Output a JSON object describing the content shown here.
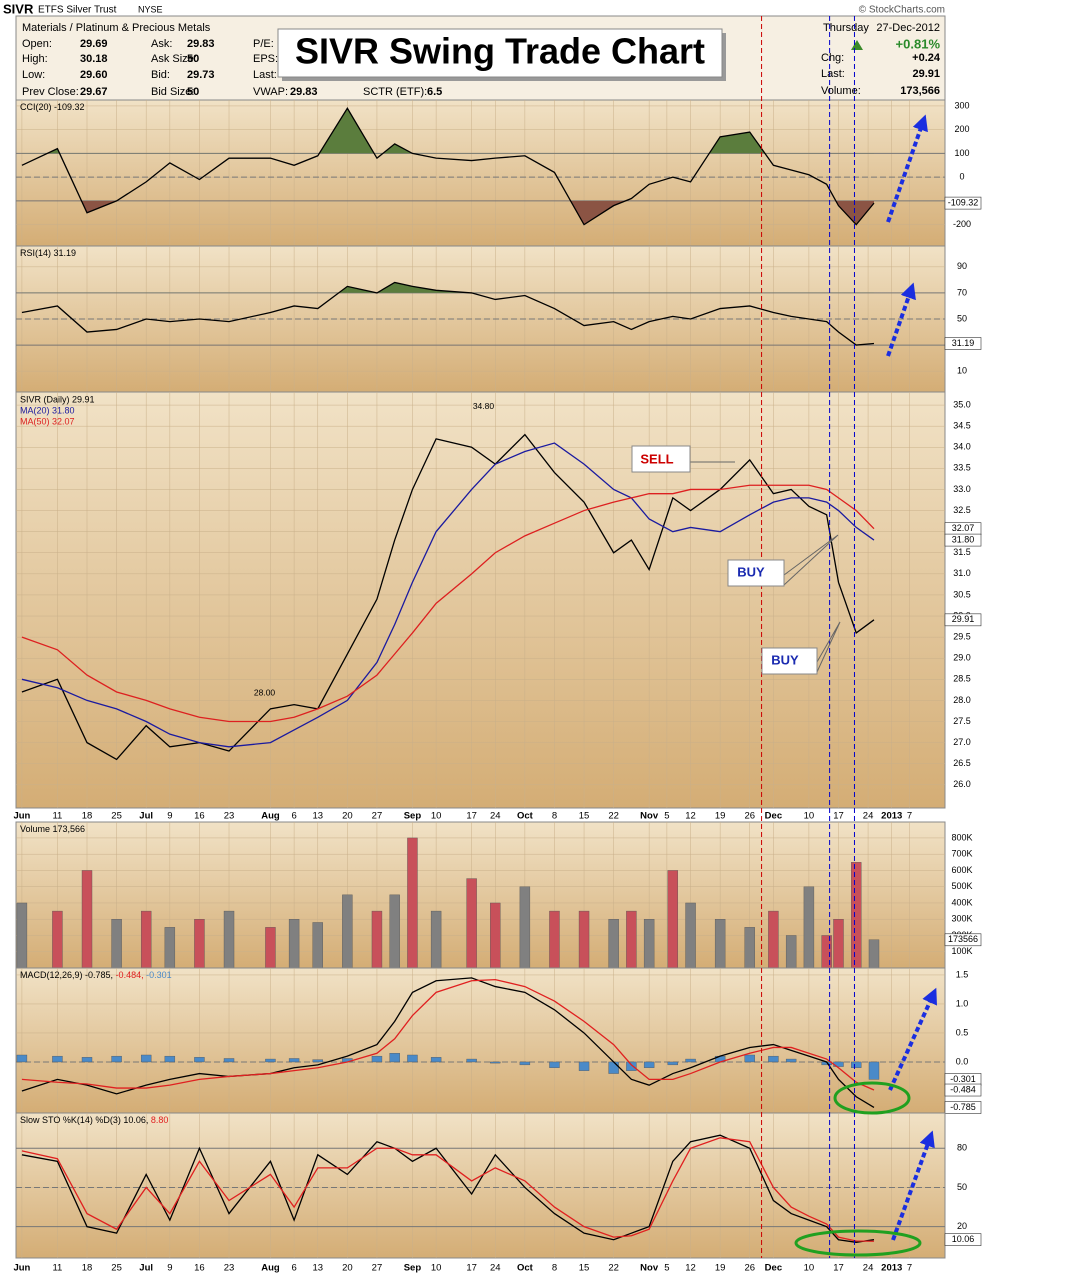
{
  "header": {
    "symbol": "SIVR",
    "name": "ETFS Silver Trust",
    "exchange": "NYSE",
    "source": "© StockCharts.com",
    "sector": "Materials / Platinum & Precious Metals",
    "day": "Thursday",
    "date": "27-Dec-2012",
    "title": "SIVR Swing Trade Chart",
    "quote_cols": [
      [
        [
          "Open:",
          "29.69"
        ],
        [
          "High:",
          "30.18"
        ],
        [
          "Low:",
          "29.60"
        ],
        [
          "Prev Close:",
          "29.67"
        ]
      ],
      [
        [
          "Ask:",
          "29.83"
        ],
        [
          "Ask Size:",
          "50"
        ],
        [
          "Bid:",
          "29.73"
        ],
        [
          "Bid Size:",
          "50"
        ]
      ],
      [
        [
          "P/E:"
        ],
        [
          "EPS:"
        ],
        [
          "Last:"
        ],
        [
          "VWAP:",
          "29.83"
        ]
      ]
    ],
    "sctr": [
      "SCTR (ETF):",
      "6.5"
    ],
    "change_pct": "+0.81%",
    "right": [
      [
        "Chg:",
        "+0.24"
      ],
      [
        "Last:",
        "29.91"
      ],
      [
        "Volume:",
        "173,566"
      ]
    ]
  },
  "x_axis": {
    "xlim": [
      0,
      157
    ],
    "x": [
      1,
      7,
      12,
      17,
      22,
      26,
      31,
      36,
      43,
      47,
      51,
      56,
      61,
      64,
      67,
      71,
      77,
      81,
      86,
      91,
      96,
      101,
      104,
      107,
      111,
      114,
      119,
      124,
      128,
      131,
      134,
      137,
      139,
      142,
      145
    ],
    "xticks": [
      {
        "value": 1,
        "label": "Jun"
      },
      {
        "value": 7,
        "label": "11"
      },
      {
        "value": 12,
        "label": "18"
      },
      {
        "value": 17,
        "label": "25"
      },
      {
        "value": 22,
        "label": "Jul"
      },
      {
        "value": 26,
        "label": "9"
      },
      {
        "value": 31,
        "label": "16"
      },
      {
        "value": 36,
        "label": "23"
      },
      {
        "value": 43,
        "label": "Aug"
      },
      {
        "value": 47,
        "label": "6"
      },
      {
        "value": 51,
        "label": "13"
      },
      {
        "value": 56,
        "label": "20"
      },
      {
        "value": 61,
        "label": "27"
      },
      {
        "value": 67,
        "label": "Sep"
      },
      {
        "value": 71,
        "label": "10"
      },
      {
        "value": 77,
        "label": "17"
      },
      {
        "value": 81,
        "label": "24"
      },
      {
        "value": 86,
        "label": "Oct"
      },
      {
        "value": 91,
        "label": "8"
      },
      {
        "value": 96,
        "label": "15"
      },
      {
        "value": 101,
        "label": "22"
      },
      {
        "value": 107,
        "label": "Nov"
      },
      {
        "value": 110,
        "label": "5"
      },
      {
        "value": 114,
        "label": "12"
      },
      {
        "value": 119,
        "label": "19"
      },
      {
        "value": 124,
        "label": "26"
      },
      {
        "value": 128,
        "label": "Dec"
      },
      {
        "value": 134,
        "label": "10"
      },
      {
        "value": 139,
        "label": "17"
      },
      {
        "value": 144,
        "label": "24"
      },
      {
        "value": 148,
        "label": "2013"
      },
      {
        "value": 151,
        "label": "7"
      }
    ],
    "markers": [
      {
        "x": 126,
        "color": "#cc0000"
      },
      {
        "x": 137.5,
        "color": "#0000cc"
      },
      {
        "x": 141.7,
        "color": "#0000cc"
      }
    ]
  },
  "chart_data": [
    {
      "type": "line",
      "ylim": [
        -290,
        325
      ],
      "yticks": [
        -200,
        0,
        100,
        200,
        300
      ],
      "levels": [
        -100,
        100
      ],
      "midline": 0,
      "series": [
        {
          "name": "CCI(20) -109.32",
          "color": "#000000",
          "fill_above": 100,
          "fill_below": -100,
          "fill_colors": [
            "#5b7d3d",
            "#8b5444"
          ],
          "values": [
            50,
            120,
            -150,
            -100,
            -20,
            60,
            -10,
            80,
            80,
            50,
            90,
            290,
            80,
            140,
            100,
            80,
            70,
            80,
            90,
            20,
            -200,
            -120,
            -90,
            -30,
            0,
            -20,
            170,
            190,
            50,
            30,
            10,
            -30,
            -120,
            -200,
            -109.32
          ]
        }
      ],
      "end_labels": [
        {
          "value": -109.32,
          "label": "-109.32"
        }
      ]
    },
    {
      "type": "line",
      "ylim": [
        -6,
        106
      ],
      "yticks": [
        10,
        50,
        70,
        90
      ],
      "levels": [
        30,
        70
      ],
      "midline": 50,
      "series": [
        {
          "name": "RSI(14) 31.19",
          "color": "#000000",
          "fill_above": 70,
          "fill_below": 30,
          "fill_colors": [
            "#5b7d3d",
            "#8b5444"
          ],
          "values": [
            55,
            60,
            40,
            42,
            50,
            48,
            50,
            48,
            55,
            60,
            58,
            75,
            70,
            78,
            75,
            72,
            70,
            65,
            68,
            58,
            45,
            48,
            42,
            48,
            52,
            50,
            58,
            60,
            55,
            52,
            50,
            48,
            40,
            30,
            31.19
          ]
        }
      ],
      "end_labels": [
        {
          "value": 31.19,
          "label": "31.19"
        }
      ]
    },
    {
      "type": "line",
      "ylim": [
        25.45,
        35.31
      ],
      "legend_layout": "stacked",
      "yticks": [
        {
          "value": 26,
          "label": "26.0"
        },
        26.5,
        {
          "value": 27,
          "label": "27.0"
        },
        27.5,
        {
          "value": 28,
          "label": "28.0"
        },
        28.5,
        {
          "value": 29,
          "label": "29.0"
        },
        29.5,
        {
          "value": 30,
          "label": "30.0"
        },
        30.5,
        {
          "value": 31,
          "label": "31.0"
        },
        31.5,
        {
          "value": 32,
          "label": "32.0"
        },
        32.5,
        {
          "value": 33,
          "label": "33.0"
        },
        33.5,
        {
          "value": 34,
          "label": "34.0"
        },
        34.5,
        {
          "value": 35,
          "label": "35.0"
        }
      ],
      "series": [
        {
          "name": "SIVR (Daily) 29.91",
          "color": "#000000",
          "values": [
            28.2,
            28.5,
            27.0,
            26.6,
            27.4,
            26.9,
            27.0,
            26.8,
            27.8,
            27.9,
            27.8,
            29.1,
            30.4,
            31.8,
            33.0,
            34.2,
            34.0,
            33.6,
            34.3,
            33.4,
            32.7,
            31.5,
            31.8,
            31.1,
            32.8,
            32.5,
            33.0,
            33.7,
            32.9,
            33.0,
            32.6,
            32.4,
            30.8,
            29.6,
            29.91
          ]
        },
        {
          "name": "MA(20) 31.80",
          "color": "#1a1aa0",
          "values": [
            28.5,
            28.3,
            28.0,
            27.8,
            27.5,
            27.2,
            27.0,
            26.9,
            27.0,
            27.3,
            27.6,
            28.0,
            28.9,
            29.8,
            30.8,
            32.0,
            33.0,
            33.6,
            33.9,
            34.1,
            33.6,
            33.0,
            32.8,
            32.3,
            32.0,
            32.1,
            32.0,
            32.4,
            32.7,
            32.8,
            32.8,
            32.7,
            32.5,
            32.1,
            31.8
          ]
        },
        {
          "name": "MA(50) 32.07",
          "color": "#dd2020",
          "values": [
            29.5,
            29.2,
            28.6,
            28.2,
            28.0,
            27.8,
            27.6,
            27.5,
            27.5,
            27.6,
            27.8,
            28.1,
            28.6,
            29.1,
            29.6,
            30.3,
            31.0,
            31.5,
            31.9,
            32.2,
            32.5,
            32.7,
            32.8,
            32.9,
            32.9,
            33.0,
            33.0,
            33.1,
            33.1,
            33.1,
            33.1,
            33.0,
            32.8,
            32.5,
            32.07
          ]
        }
      ],
      "price_labels": [
        {
          "x": 3,
          "value": 29.63
        },
        {
          "x": 5,
          "value": 27.95
        },
        {
          "x": 8,
          "value": 28.88
        },
        {
          "x": 17,
          "value": 27.42
        },
        {
          "x": 16,
          "value": 26.37
        },
        {
          "x": 20,
          "value": 25.92
        },
        {
          "x": 23,
          "value": 28.21
        },
        {
          "x": 30,
          "value": 27.34
        },
        {
          "x": 29,
          "value": 26.31
        },
        {
          "x": 42,
          "value": 28,
          "label": "28.00"
        },
        {
          "x": 37,
          "value": 26.41
        },
        {
          "x": 44,
          "value": 26.72
        },
        {
          "x": 61,
          "value": 30.91
        },
        {
          "x": 64,
          "value": 29.95
        },
        {
          "x": 73,
          "value": 34.48
        },
        {
          "x": 72,
          "value": 32.17
        },
        {
          "x": 79,
          "value": 34.8,
          "label": "34.80"
        },
        {
          "x": 86,
          "value": 34.85
        },
        {
          "x": 83,
          "value": 33.14
        },
        {
          "x": 107,
          "value": 32.23
        },
        {
          "x": 103,
          "value": 31.23
        },
        {
          "x": 108,
          "value": 30.51
        },
        {
          "x": 126,
          "value": 34.05
        },
        {
          "x": 125,
          "value": 32.64
        },
        {
          "x": 135,
          "value": 33.42
        },
        {
          "x": 130,
          "value": 32.22
        },
        {
          "x": 141,
          "value": 29.31
        }
      ],
      "annotations": [
        "SELL",
        "BUY",
        "BUY"
      ],
      "end_labels": [
        {
          "value": 32.07,
          "label": "32.07"
        },
        {
          "value": 31.8,
          "label": "31.80"
        },
        {
          "value": 29.91,
          "label": "29.91"
        }
      ]
    },
    {
      "type": "bar",
      "ylim": [
        0,
        898000
      ],
      "yticks": [
        {
          "value": 100000,
          "label": "100K"
        },
        {
          "value": 200000,
          "label": "200K"
        },
        {
          "value": 300000,
          "label": "300K"
        },
        {
          "value": 400000,
          "label": "400K"
        },
        {
          "value": 500000,
          "label": "500K"
        },
        {
          "value": 600000,
          "label": "600K"
        },
        {
          "value": 700000,
          "label": "700K"
        },
        {
          "value": 800000,
          "label": "800K"
        }
      ],
      "series": [
        {
          "name": "Volume 173,566",
          "color": "#000000",
          "colors": [
            "#808080",
            "#c8505a",
            "#c8505a",
            "#808080",
            "#c8505a",
            "#808080",
            "#c8505a",
            "#808080",
            "#c8505a",
            "#808080",
            "#808080",
            "#808080",
            "#c8505a",
            "#808080",
            "#c8505a",
            "#808080",
            "#c8505a",
            "#c8505a",
            "#808080",
            "#c8505a",
            "#c8505a",
            "#808080",
            "#c8505a",
            "#808080",
            "#c8505a",
            "#808080",
            "#808080",
            "#808080",
            "#c8505a",
            "#808080",
            "#808080",
            "#c8505a",
            "#c8505a",
            "#c8505a",
            "#808080"
          ],
          "values": [
            400000,
            350000,
            600000,
            300000,
            350000,
            250000,
            300000,
            350000,
            250000,
            300000,
            280000,
            450000,
            350000,
            450000,
            800000,
            350000,
            550000,
            400000,
            500000,
            350000,
            350000,
            300000,
            350000,
            300000,
            600000,
            400000,
            300000,
            250000,
            350000,
            200000,
            500000,
            200000,
            300000,
            650000,
            173566
          ]
        }
      ],
      "end_labels": [
        {
          "value": 173566,
          "label": "173566"
        }
      ]
    },
    {
      "type": "line",
      "ylim": [
        -0.88,
        1.62
      ],
      "midline": 0,
      "yticks": [
        {
          "value": 0,
          "label": "0.0"
        },
        0.5,
        {
          "value": 1,
          "label": "1.0"
        },
        1.5
      ],
      "series": [
        {
          "name": "-0.301",
          "type": "bar",
          "color": "#4a8ac8",
          "values": [
            0.12,
            0.1,
            0.08,
            0.1,
            0.12,
            0.1,
            0.08,
            0.06,
            0.05,
            0.06,
            0.04,
            0.06,
            0.1,
            0.15,
            0.12,
            0.08,
            0.05,
            -0.02,
            -0.05,
            -0.1,
            -0.15,
            -0.2,
            -0.15,
            -0.1,
            -0.05,
            0.05,
            0.1,
            0.12,
            0.1,
            0.05,
            0,
            -0.05,
            -0.08,
            -0.1,
            -0.301
          ]
        },
        {
          "name": "MACD(12,26,9) -0.785,",
          "color": "#000000",
          "values": [
            -0.5,
            -0.3,
            -0.4,
            -0.55,
            -0.4,
            -0.3,
            -0.2,
            -0.25,
            -0.2,
            -0.1,
            -0.05,
            0.1,
            0.3,
            0.7,
            1.2,
            1.4,
            1.45,
            1.3,
            1.2,
            0.9,
            0.5,
            0,
            -0.3,
            -0.4,
            -0.2,
            -0.1,
            0.1,
            0.25,
            0.3,
            0.2,
            0.1,
            0,
            -0.3,
            -0.6,
            -0.785
          ]
        },
        {
          "name": "-0.484,",
          "color": "#e02020",
          "values": [
            -0.3,
            -0.35,
            -0.38,
            -0.45,
            -0.45,
            -0.4,
            -0.3,
            -0.25,
            -0.2,
            -0.15,
            -0.1,
            0,
            0.15,
            0.4,
            0.8,
            1.2,
            1.4,
            1.42,
            1.3,
            1.05,
            0.7,
            0.3,
            -0.05,
            -0.3,
            -0.3,
            -0.2,
            0,
            0.15,
            0.25,
            0.25,
            0.15,
            0.05,
            -0.1,
            -0.35,
            -0.484
          ]
        }
      ],
      "legend_order": [
        1,
        2,
        0
      ],
      "end_labels": [
        {
          "value": -0.301,
          "label": "-0.301"
        },
        {
          "value": -0.484,
          "label": "-0.484"
        },
        {
          "value": -0.785,
          "label": "-0.785"
        }
      ]
    },
    {
      "type": "line",
      "ylim": [
        -4,
        107
      ],
      "yticks": [
        20,
        50,
        80
      ],
      "levels": [
        20,
        80
      ],
      "midline": 50,
      "series": [
        {
          "name": "Slow STO %K(14) %D(3) 10.06,",
          "color": "#000000",
          "values": [
            75,
            70,
            20,
            15,
            60,
            25,
            80,
            30,
            70,
            25,
            75,
            60,
            85,
            80,
            70,
            80,
            45,
            75,
            50,
            30,
            15,
            10,
            15,
            20,
            70,
            85,
            90,
            80,
            40,
            30,
            25,
            20,
            10,
            8,
            10.06
          ]
        },
        {
          "name": "8.80",
          "color": "#e02020",
          "values": [
            78,
            72,
            30,
            18,
            50,
            30,
            70,
            40,
            60,
            35,
            65,
            65,
            80,
            80,
            75,
            75,
            55,
            65,
            55,
            35,
            20,
            12,
            13,
            18,
            55,
            80,
            88,
            85,
            50,
            35,
            28,
            22,
            12,
            9,
            8.8
          ]
        }
      ],
      "end_labels": [
        {
          "value": 10.06,
          "label": "10.06"
        }
      ]
    }
  ]
}
